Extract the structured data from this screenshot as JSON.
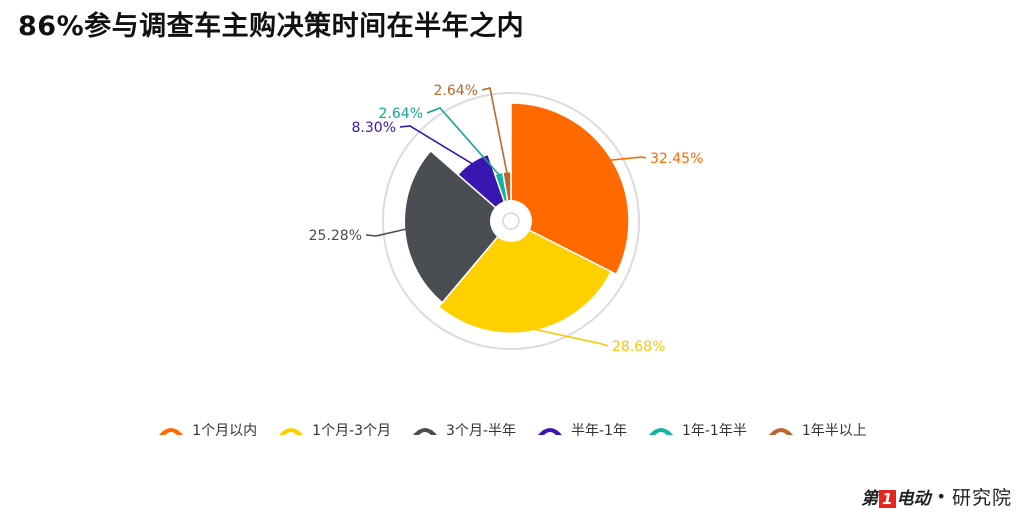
{
  "title": "86%参与调查车主购决策时间在半年之内",
  "chart_data": {
    "type": "pie",
    "subtype": "rose",
    "categories": [
      "1个月以内",
      "1个月-3个月",
      "3个月-半年",
      "半年-1年",
      "1年-1年半",
      "1年半以上"
    ],
    "values": [
      32.45,
      28.68,
      25.28,
      8.3,
      2.64,
      2.64
    ],
    "data_labels": [
      "32.45%",
      "28.68%",
      "25.28%",
      "8.30%",
      "2.64%",
      "2.64%"
    ],
    "colors": [
      "#ff6a00",
      "#ffd000",
      "#4a4e52",
      "#3a16b0",
      "#12b3a0",
      "#b8672e"
    ],
    "label_colors": [
      "#ff6a00",
      "#ffc400",
      "#4a4e52",
      "#3a16b0",
      "#12a595",
      "#b8672e"
    ],
    "legend_position": "bottom"
  },
  "brand": {
    "logo_word_a": "第",
    "logo_num": "1",
    "logo_word_b": "电动",
    "dot": "•",
    "suffix": "研究院"
  }
}
